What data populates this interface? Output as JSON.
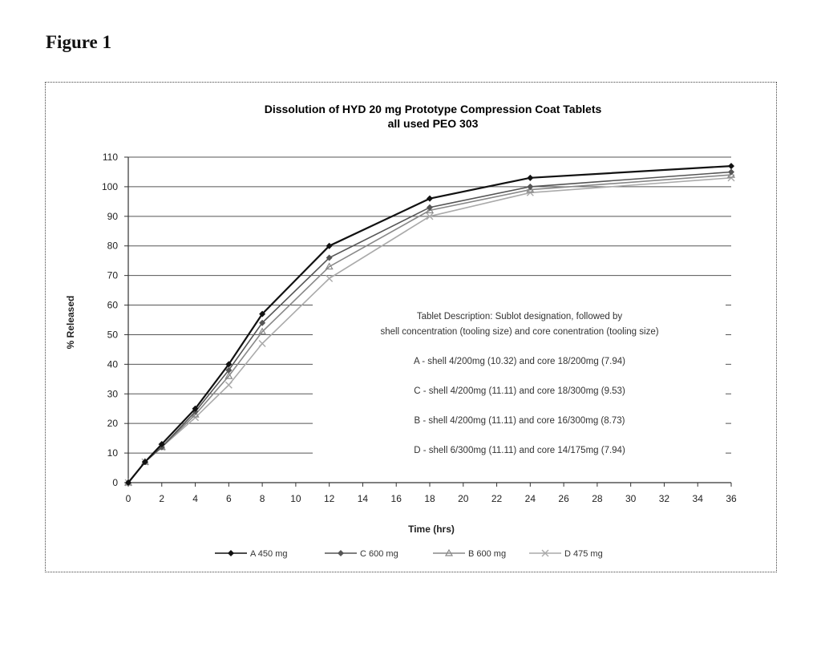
{
  "figure_label": "Figure 1",
  "chart_data": {
    "type": "line",
    "title": "Dissolution of HYD 20 mg Prototype Compression Coat Tablets",
    "subtitle": "all used PEO 303",
    "xlabel": "Time (hrs)",
    "ylabel": "% Released",
    "xlim": [
      0,
      36
    ],
    "ylim": [
      0,
      110
    ],
    "xticks": [
      0,
      2,
      4,
      6,
      8,
      10,
      12,
      14,
      16,
      18,
      20,
      22,
      24,
      26,
      28,
      30,
      32,
      34,
      36
    ],
    "yticks": [
      0,
      10,
      20,
      30,
      40,
      50,
      60,
      70,
      80,
      90,
      100,
      110
    ],
    "grid": "horizontal",
    "x": [
      0,
      1,
      2,
      4,
      6,
      8,
      12,
      18,
      24,
      36
    ],
    "series": [
      {
        "name": "A 450 mg",
        "color": "#111111",
        "marker": "diamond",
        "values": [
          0,
          7,
          13,
          25,
          40,
          57,
          80,
          96,
          103,
          107
        ]
      },
      {
        "name": "C 600 mg",
        "color": "#555555",
        "marker": "diamond",
        "values": [
          0,
          7,
          12,
          24,
          38,
          54,
          76,
          93,
          100,
          105
        ]
      },
      {
        "name": "B 600 mg",
        "color": "#888888",
        "marker": "triangle",
        "values": [
          0,
          7,
          12,
          23,
          36,
          51,
          73,
          92,
          99,
          104
        ]
      },
      {
        "name": "D 475 mg",
        "color": "#aaaaaa",
        "marker": "cross",
        "values": [
          0,
          7,
          12,
          22,
          33,
          47,
          69,
          90,
          98,
          103
        ]
      }
    ],
    "annotations": [
      "Tablet Description: Sublot designation, followed by",
      "shell concentration (tooling size) and core conentration (tooling size)",
      "A  - shell 4/200mg (10.32) and core 18/200mg (7.94)",
      "C - shell 4/200mg (11.11) and core 18/300mg (9.53)",
      "B - shell 4/200mg (11.11) and core 16/300mg (8.73)",
      "D - shell 6/300mg (11.11) and core 14/175mg (7.94)"
    ],
    "legend_position": "bottom"
  }
}
